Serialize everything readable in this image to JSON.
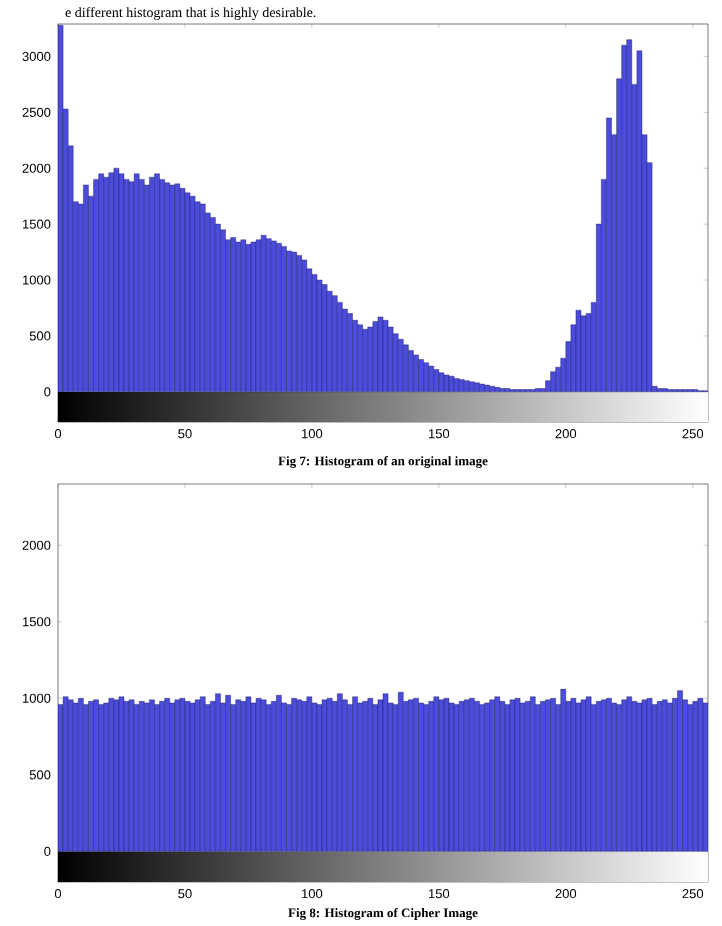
{
  "chart_data": [
    {
      "type": "histogram",
      "title": "Fig 7: Histogram of an original image",
      "annotations": [
        "e different histogram that is highly desirable."
      ],
      "color": "#4b4bdc",
      "bands": [
        {
          "axis": "y",
          "from": -270,
          "to": 0
        }
      ],
      "xlim": [
        0,
        256
      ],
      "ylim": [
        -270,
        3290
      ],
      "xticks": [
        0,
        50,
        100,
        150,
        200,
        250
      ],
      "yticks": [
        0,
        500,
        1000,
        1500,
        2000,
        2500,
        3000
      ],
      "bins": [
        0,
        2,
        4,
        6,
        8,
        10,
        12,
        14,
        16,
        18,
        20,
        22,
        24,
        26,
        28,
        30,
        32,
        34,
        36,
        38,
        40,
        42,
        44,
        46,
        48,
        50,
        52,
        54,
        56,
        58,
        60,
        62,
        64,
        66,
        68,
        70,
        72,
        74,
        76,
        78,
        80,
        82,
        84,
        86,
        88,
        90,
        92,
        94,
        96,
        98,
        100,
        102,
        104,
        106,
        108,
        110,
        112,
        114,
        116,
        118,
        120,
        122,
        124,
        126,
        128,
        130,
        132,
        134,
        136,
        138,
        140,
        142,
        144,
        146,
        148,
        150,
        152,
        154,
        156,
        158,
        160,
        162,
        164,
        166,
        168,
        170,
        172,
        174,
        176,
        178,
        180,
        182,
        184,
        186,
        188,
        190,
        192,
        194,
        196,
        198,
        200,
        202,
        204,
        206,
        208,
        210,
        212,
        214,
        216,
        218,
        220,
        222,
        224,
        226,
        228,
        230,
        232,
        234,
        236,
        238,
        240,
        242,
        244,
        246,
        248,
        250,
        252,
        254,
        256
      ],
      "values": [
        3280,
        2530,
        2200,
        1700,
        1680,
        1850,
        1750,
        1900,
        1950,
        1920,
        1960,
        2000,
        1950,
        1900,
        1880,
        1950,
        1900,
        1850,
        1920,
        1950,
        1900,
        1870,
        1850,
        1860,
        1820,
        1780,
        1750,
        1700,
        1680,
        1600,
        1560,
        1500,
        1450,
        1360,
        1380,
        1340,
        1360,
        1320,
        1340,
        1360,
        1400,
        1370,
        1350,
        1330,
        1300,
        1260,
        1250,
        1220,
        1180,
        1100,
        1050,
        1000,
        960,
        900,
        860,
        800,
        740,
        700,
        640,
        600,
        560,
        580,
        630,
        670,
        640,
        580,
        520,
        470,
        420,
        370,
        330,
        290,
        260,
        230,
        200,
        170,
        150,
        140,
        120,
        110,
        100,
        90,
        80,
        70,
        60,
        50,
        40,
        30,
        30,
        20,
        20,
        20,
        20,
        20,
        30,
        30,
        100,
        180,
        220,
        300,
        450,
        600,
        730,
        680,
        700,
        800,
        1500,
        1900,
        2450,
        2300,
        2800,
        3100,
        3150,
        2750,
        3050,
        2300,
        2050,
        50,
        30,
        30,
        20,
        20,
        20,
        20,
        20,
        20,
        10,
        10
      ]
    },
    {
      "type": "histogram",
      "title": "Fig 8: Histogram of Cipher Image",
      "color": "#4b4bdc",
      "bands": [
        {
          "axis": "y",
          "from": -200,
          "to": 0
        }
      ],
      "xlim": [
        0,
        256
      ],
      "ylim": [
        -200,
        2400
      ],
      "xticks": [
        0,
        50,
        100,
        150,
        200,
        250
      ],
      "yticks": [
        0,
        500,
        1000,
        1500,
        2000
      ],
      "bins": [
        0,
        2,
        4,
        6,
        8,
        10,
        12,
        14,
        16,
        18,
        20,
        22,
        24,
        26,
        28,
        30,
        32,
        34,
        36,
        38,
        40,
        42,
        44,
        46,
        48,
        50,
        52,
        54,
        56,
        58,
        60,
        62,
        64,
        66,
        68,
        70,
        72,
        74,
        76,
        78,
        80,
        82,
        84,
        86,
        88,
        90,
        92,
        94,
        96,
        98,
        100,
        102,
        104,
        106,
        108,
        110,
        112,
        114,
        116,
        118,
        120,
        122,
        124,
        126,
        128,
        130,
        132,
        134,
        136,
        138,
        140,
        142,
        144,
        146,
        148,
        150,
        152,
        154,
        156,
        158,
        160,
        162,
        164,
        166,
        168,
        170,
        172,
        174,
        176,
        178,
        180,
        182,
        184,
        186,
        188,
        190,
        192,
        194,
        196,
        198,
        200,
        202,
        204,
        206,
        208,
        210,
        212,
        214,
        216,
        218,
        220,
        222,
        224,
        226,
        228,
        230,
        232,
        234,
        236,
        238,
        240,
        242,
        244,
        246,
        248,
        250,
        252,
        254,
        256
      ],
      "values": [
        960,
        1010,
        990,
        970,
        1000,
        960,
        980,
        990,
        960,
        970,
        1000,
        990,
        1010,
        980,
        990,
        960,
        980,
        970,
        990,
        960,
        980,
        1000,
        970,
        990,
        1000,
        980,
        970,
        990,
        1010,
        960,
        980,
        1030,
        970,
        1020,
        960,
        990,
        980,
        1010,
        970,
        1000,
        990,
        960,
        980,
        1020,
        970,
        960,
        1000,
        990,
        980,
        1010,
        970,
        960,
        990,
        1000,
        980,
        1030,
        990,
        960,
        1010,
        970,
        980,
        1000,
        960,
        990,
        1030,
        970,
        960,
        1040,
        980,
        990,
        1000,
        970,
        960,
        980,
        1010,
        990,
        1000,
        970,
        960,
        980,
        990,
        1000,
        980,
        960,
        970,
        990,
        1010,
        980,
        960,
        990,
        1000,
        970,
        980,
        1010,
        960,
        980,
        990,
        1000,
        960,
        1060,
        980,
        1000,
        970,
        990,
        1010,
        960,
        980,
        990,
        1000,
        970,
        960,
        990,
        1010,
        980,
        970,
        990,
        1000,
        960,
        980,
        990,
        970,
        1000,
        1050,
        990,
        960,
        980,
        1000,
        970
      ]
    }
  ]
}
